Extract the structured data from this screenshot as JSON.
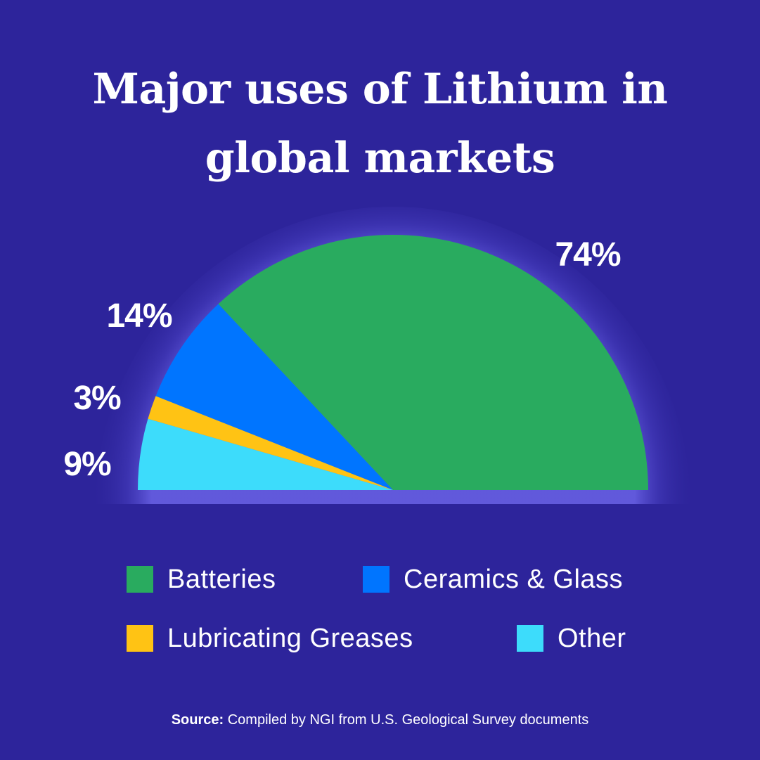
{
  "chart_data": {
    "type": "pie",
    "title_lines": [
      "Major uses of Lithium in",
      "global markets"
    ],
    "slices": [
      {
        "label": "Batteries",
        "value": 74,
        "display": "74%",
        "color": "#29ab5f"
      },
      {
        "label": "Ceramics & Glass",
        "value": 14,
        "display": "14%",
        "color": "#0075ff"
      },
      {
        "label": "Lubricating Greases",
        "value": 3,
        "display": "3%",
        "color": "#ffc314"
      },
      {
        "label": "Other",
        "value": 9,
        "display": "9%",
        "color": "#3ddcfb"
      }
    ],
    "shape": "semicircle",
    "legend_position": "bottom",
    "source_label": "Source:",
    "source_text": "Compiled by NGI from U.S. Geological Survey documents"
  }
}
